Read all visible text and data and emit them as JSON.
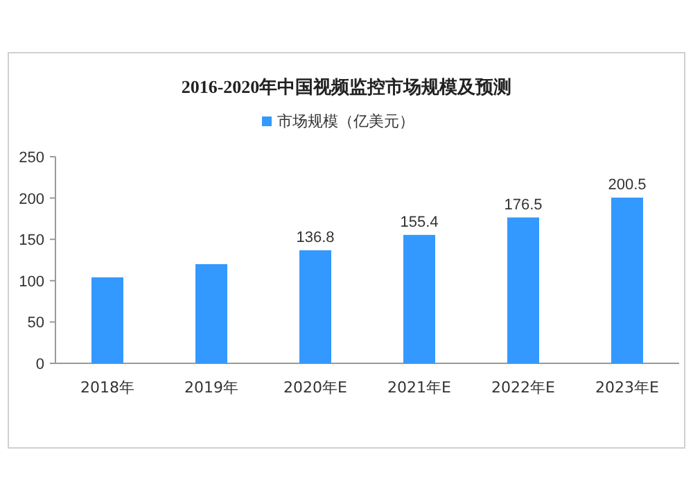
{
  "chart_data": {
    "type": "bar",
    "title": "2016-2020年中国视频监控市场规模及预测",
    "categories": [
      "2018年",
      "2019年",
      "2020年E",
      "2021年E",
      "2022年E",
      "2023年E"
    ],
    "series": [
      {
        "name": "市场规模（亿美元）",
        "color": "#3399ff",
        "values": [
          104,
          120,
          136.8,
          155.4,
          176.5,
          200.5
        ],
        "value_labels": [
          null,
          null,
          "136.8",
          "155.4",
          "176.5",
          "200.5"
        ]
      }
    ],
    "ylim": [
      0,
      250
    ],
    "yticks": [
      0,
      50,
      100,
      150,
      200,
      250
    ],
    "legend": "top"
  }
}
